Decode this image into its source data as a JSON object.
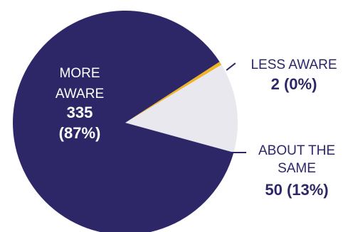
{
  "chart_data": {
    "type": "pie",
    "slices": [
      {
        "label": "MORE AWARE",
        "value": 335,
        "percent_label": "(87%)",
        "color": "#2d2768"
      },
      {
        "label": "LESS AWARE",
        "value": 2,
        "percent_label": "(0%)",
        "color": "#f0b323"
      },
      {
        "label": "ABOUT THE SAME",
        "value": 50,
        "percent_label": "(13%)",
        "color": "#e8e8ee"
      }
    ],
    "labels": {
      "more_aware": {
        "line1": "MORE",
        "line2": "AWARE",
        "value": "335",
        "pct": "(87%)"
      },
      "less_aware": {
        "name": "LESS AWARE",
        "value_line": "2 (0%)"
      },
      "about_same": {
        "line1": "ABOUT THE",
        "line2": "SAME",
        "value_line": "50 (13%)"
      }
    }
  }
}
